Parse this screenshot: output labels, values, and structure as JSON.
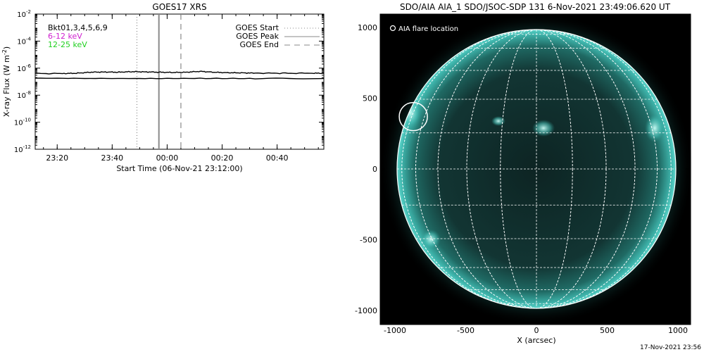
{
  "goes_panel": {
    "title": "GOES17 XRS",
    "ylabel_main": "X-ray Flux (W m",
    "ylabel_sup": "-2",
    "ylabel_close": ")",
    "xlabel": "Start Time (06-Nov-21 23:12:00)",
    "legend_left": [
      {
        "text": "Bkt01,3,4,5,6,9",
        "color": "#000000"
      },
      {
        "text": "6-12 keV",
        "color": "#d020d0"
      },
      {
        "text": "12-25 keV",
        "color": "#20d020"
      }
    ],
    "legend_right": [
      {
        "text": "GOES Start",
        "style": "dotted"
      },
      {
        "text": "GOES Peak",
        "style": "solid"
      },
      {
        "text": "GOES End",
        "style": "dashed"
      }
    ]
  },
  "aia_panel": {
    "title": "SDO/AIA AIA_1 SDO/JSOC-SDP 131  6-Nov-2021 23:49:06.620 UT",
    "marker_label": "AIA flare location",
    "xlabel": "X (arcsec)",
    "xticks": [
      "-1000",
      "-500",
      "0",
      "500",
      "1000"
    ],
    "yticks": [
      "1000",
      "500",
      "0",
      "-500",
      "-1000"
    ],
    "disk_color": "#2a9a92",
    "flare_arcsec": [
      -870,
      370
    ]
  },
  "footer": {
    "timestamp": "17-Nov-2021 23:56"
  },
  "chart_data": [
    {
      "type": "line",
      "title": "GOES17 XRS",
      "xlabel": "Start Time (06-Nov-21 23:12:00)",
      "ylabel": "X-ray Flux (W m-2)",
      "yscale": "log",
      "ylim": [
        1e-12,
        0.01
      ],
      "xlim_minutes_after_start": [
        0,
        105
      ],
      "xtick_labels": [
        "23:20",
        "23:40",
        "00:00",
        "00:20",
        "00:40"
      ],
      "xtick_minutes_after_start": [
        8,
        28,
        48,
        68,
        88
      ],
      "ytick_exponents": [
        -2,
        -4,
        -6,
        -8,
        -10,
        -12
      ],
      "series": [
        {
          "name": "6-12 keV",
          "color": "#000000",
          "x": [
            0,
            10,
            15,
            20,
            25,
            30,
            35,
            40,
            45,
            50,
            55,
            60,
            65,
            70,
            75,
            80,
            90,
            100,
            105
          ],
          "y": [
            4e-07,
            4e-07,
            4.2e-07,
            5e-07,
            5.2e-07,
            5e-07,
            5.5e-07,
            5.3e-07,
            5e-07,
            4.8e-07,
            5e-07,
            5.8e-07,
            5e-07,
            4.6e-07,
            4.5e-07,
            4.3e-07,
            4.2e-07,
            4.2e-07,
            4.2e-07
          ]
        },
        {
          "name": "12-25 keV",
          "color": "#000000",
          "x": [
            0,
            20,
            40,
            60,
            80,
            105
          ],
          "y": [
            1.8e-07,
            1.75e-07,
            1.7e-07,
            1.75e-07,
            1.7e-07,
            1.7e-07
          ]
        }
      ],
      "vertical_markers": [
        {
          "label": "GOES Start",
          "style": "dotted",
          "x": 37
        },
        {
          "label": "GOES Peak",
          "style": "solid",
          "x": 45
        },
        {
          "label": "GOES End",
          "style": "dashed",
          "x": 53
        }
      ]
    }
  ]
}
